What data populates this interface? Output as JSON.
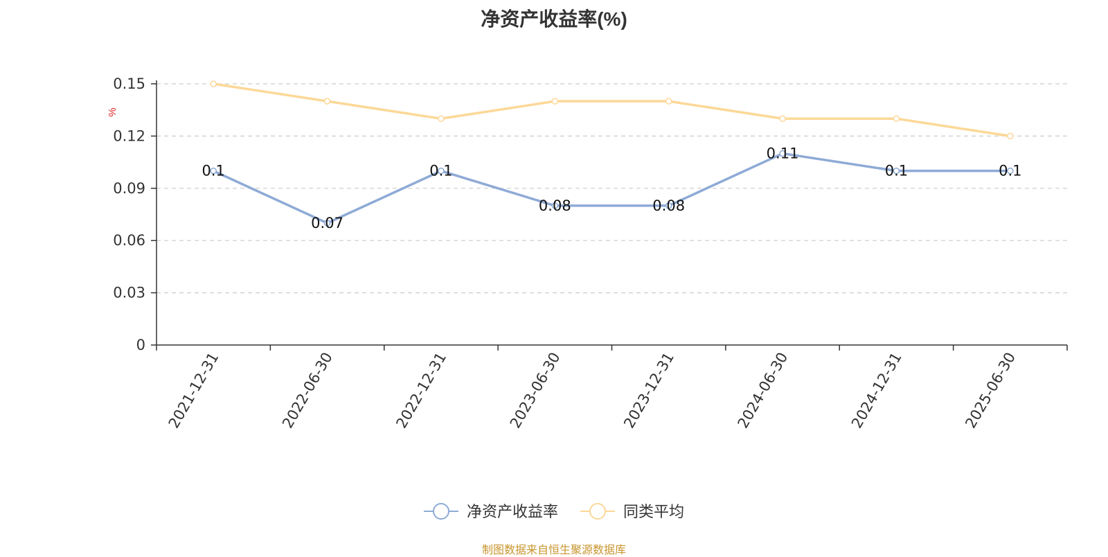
{
  "chart_data": {
    "type": "line",
    "title": "净资产收益率(%)",
    "ylabel": "%",
    "ylim": [
      0,
      0.15
    ],
    "yticks": [
      "0",
      "0.03",
      "0.06",
      "0.09",
      "0.12",
      "0.15"
    ],
    "grid": true,
    "legend_position": "bottom",
    "categories": [
      "2021-12-31",
      "2022-06-30",
      "2022-12-31",
      "2023-06-30",
      "2023-12-31",
      "2024-06-30",
      "2024-12-31",
      "2025-06-30"
    ],
    "series": [
      {
        "name": "净资产收益率",
        "color": "#8eaad6",
        "values": [
          0.1,
          0.07,
          0.1,
          0.08,
          0.08,
          0.11,
          0.1,
          0.1
        ],
        "labels": [
          "0.1",
          "0.07",
          "0.1",
          "0.08",
          "0.08",
          "0.11",
          "0.1",
          "0.1"
        ]
      },
      {
        "name": "同类平均",
        "color": "#fcd898",
        "values": [
          0.15,
          0.14,
          0.13,
          0.14,
          0.14,
          0.13,
          0.13,
          0.12
        ]
      }
    ]
  },
  "source_note": "制图数据来自恒生聚源数据库"
}
